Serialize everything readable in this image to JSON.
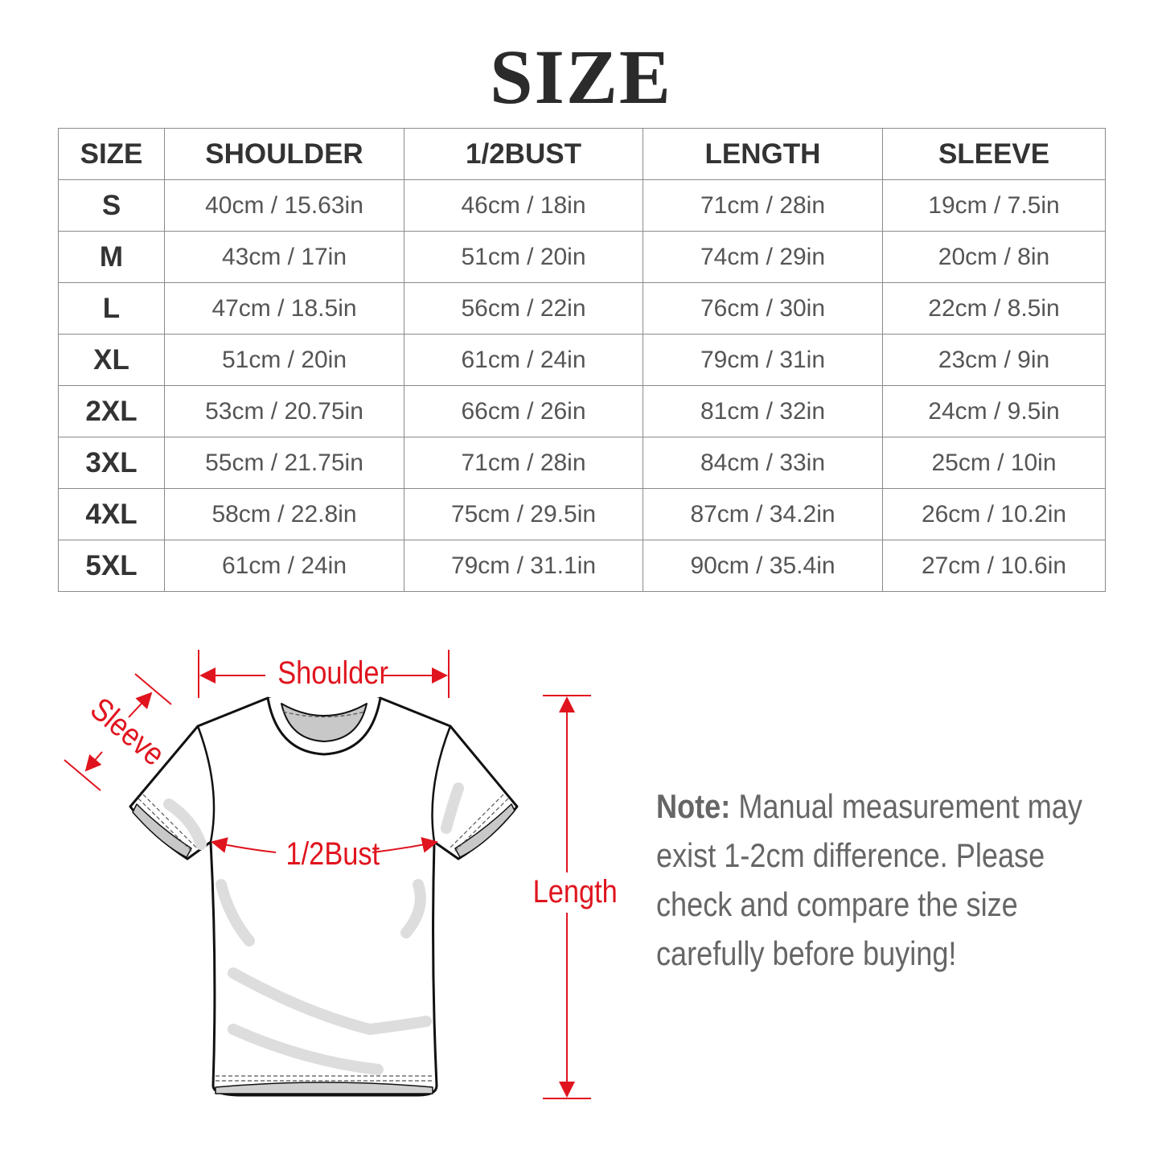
{
  "title": "SIZE",
  "table": {
    "headers": [
      "SIZE",
      "SHOULDER",
      "1/2BUST",
      "LENGTH",
      "SLEEVE"
    ],
    "rows": [
      [
        "S",
        "40cm / 15.63in",
        "46cm / 18in",
        "71cm / 28in",
        "19cm / 7.5in"
      ],
      [
        "M",
        "43cm / 17in",
        "51cm / 20in",
        "74cm / 29in",
        "20cm / 8in"
      ],
      [
        "L",
        "47cm / 18.5in",
        "56cm / 22in",
        "76cm / 30in",
        "22cm / 8.5in"
      ],
      [
        "XL",
        "51cm / 20in",
        "61cm / 24in",
        "79cm / 31in",
        "23cm / 9in"
      ],
      [
        "2XL",
        "53cm / 20.75in",
        "66cm / 26in",
        "81cm / 32in",
        "24cm / 9.5in"
      ],
      [
        "3XL",
        "55cm / 21.75in",
        "71cm / 28in",
        "84cm / 33in",
        "25cm / 10in"
      ],
      [
        "4XL",
        "58cm / 22.8in",
        "75cm / 29.5in",
        "87cm / 34.2in",
        "26cm / 10.2in"
      ],
      [
        "5XL",
        "61cm / 24in",
        "79cm / 31.1in",
        "90cm / 35.4in",
        "27cm / 10.6in"
      ]
    ]
  },
  "diagram": {
    "shoulder": "Shoulder",
    "sleeve": "Sleeve",
    "bust": "1/2Bust",
    "length": "Length",
    "accent_color": "#e0141e"
  },
  "note": {
    "label": "Note:",
    "lines": [
      "Manual measurement may",
      "exist 1-2cm difference. Please",
      "check and compare the size",
      "carefully before buying!"
    ]
  }
}
